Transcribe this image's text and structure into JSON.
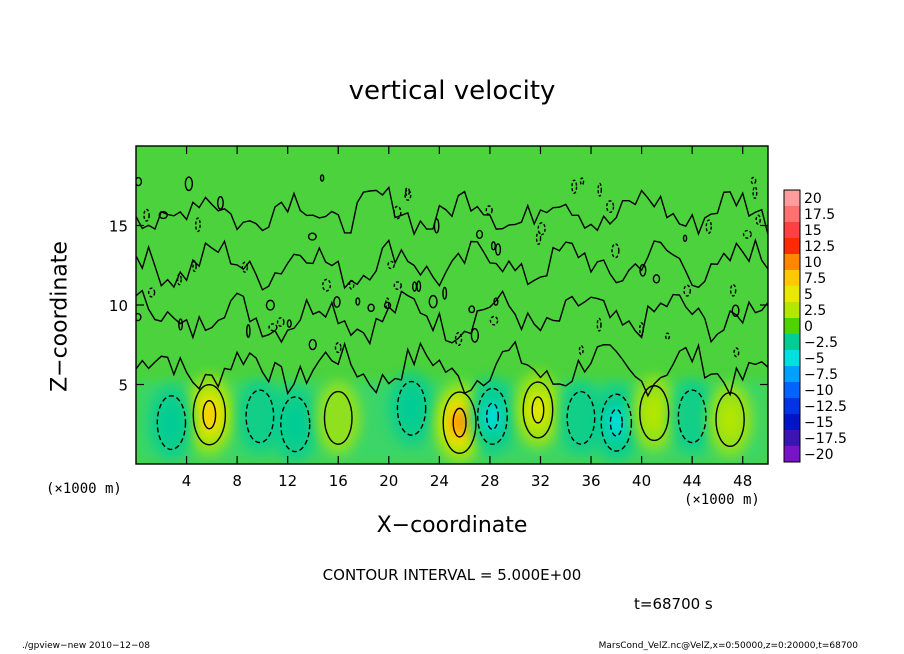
{
  "chart_data": {
    "type": "heatmap",
    "title": "vertical velocity",
    "xlabel": "X−coordinate",
    "ylabel": "Z−coordinate",
    "x_unit": "(×1000 m)",
    "y_unit": "(×1000 m)",
    "xlim": [
      0,
      50
    ],
    "ylim": [
      0,
      20
    ],
    "x_ticks": [
      4,
      8,
      12,
      16,
      20,
      24,
      28,
      32,
      36,
      40,
      44,
      48
    ],
    "y_ticks": [
      5,
      10,
      15
    ],
    "colorbar": {
      "levels": [
        20,
        17.5,
        15,
        12.5,
        10,
        7.5,
        5,
        2.5,
        0,
        -2.5,
        -5,
        -7.5,
        -10,
        -12.5,
        -15,
        -17.5,
        -20
      ],
      "level_labels": [
        "20",
        "17.5",
        "15",
        "12.5",
        "10",
        "7.5",
        "5",
        "2.5",
        "0",
        "−2.5",
        "−5",
        "−7.5",
        "−10",
        "−12.5",
        "−15",
        "−17.5",
        "−20"
      ],
      "colors": [
        "#ff9d9d",
        "#ff7070",
        "#ff4040",
        "#ff2a00",
        "#ff8800",
        "#ffc800",
        "#e8e800",
        "#b4e600",
        "#50d200",
        "#00cc96",
        "#00e0e0",
        "#00a0ff",
        "#0064ff",
        "#0032e6",
        "#0014c8",
        "#3c14b4",
        "#7814c8"
      ]
    },
    "features": [
      {
        "kind": "updraft",
        "x": 5.8,
        "z": 3.1,
        "peak": 9
      },
      {
        "kind": "downdraft",
        "x": 2.8,
        "z": 2.6,
        "peak": -3
      },
      {
        "kind": "downdraft",
        "x": 9.8,
        "z": 3.0,
        "peak": -2
      },
      {
        "kind": "downdraft",
        "x": 12.6,
        "z": 2.5,
        "peak": -4
      },
      {
        "kind": "updraft",
        "x": 16.0,
        "z": 2.9,
        "peak": 2
      },
      {
        "kind": "downdraft",
        "x": 21.8,
        "z": 3.5,
        "peak": -3
      },
      {
        "kind": "updraft",
        "x": 25.6,
        "z": 2.6,
        "peak": 10
      },
      {
        "kind": "downdraft",
        "x": 28.2,
        "z": 3.0,
        "peak": -5
      },
      {
        "kind": "updraft",
        "x": 31.8,
        "z": 3.4,
        "peak": 5
      },
      {
        "kind": "downdraft",
        "x": 35.2,
        "z": 2.9,
        "peak": -2
      },
      {
        "kind": "downdraft",
        "x": 38.0,
        "z": 2.6,
        "peak": -6
      },
      {
        "kind": "updraft",
        "x": 41.0,
        "z": 3.2,
        "peak": 4
      },
      {
        "kind": "downdraft",
        "x": 44.0,
        "z": 3.0,
        "peak": -2
      },
      {
        "kind": "updraft",
        "x": 47.0,
        "z": 2.8,
        "peak": 3
      }
    ],
    "grid": false,
    "legend": "right"
  },
  "contour_text": "CONTOUR INTERVAL = 5.000E+00",
  "time_text": "t=68700 s",
  "footer_left": "./gpview−new   2010−12−08",
  "footer_right": "MarsCond_VelZ.nc@VelZ,x=0:50000,z=0:20000,t=68700"
}
